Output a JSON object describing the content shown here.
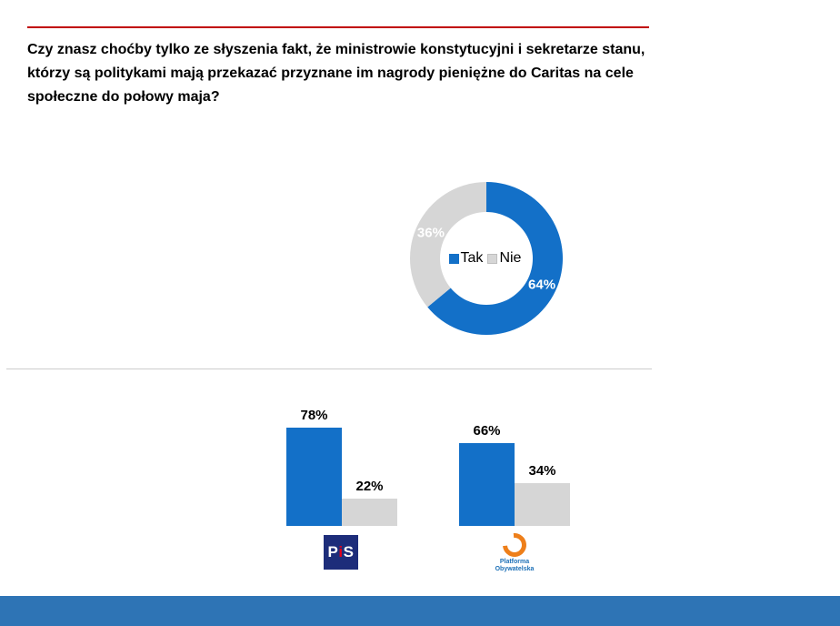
{
  "title": "Czy znasz choćby tylko ze słyszenia fakt, że ministrowie konstytucyjni i sekretarze stanu, którzy są politykami mają przekazać przyznane im nagrody pieniężne do Caritas na cele społeczne do połowy maja?",
  "colors": {
    "rule_red": "#C00000",
    "chart_blue": "#1370C8",
    "chart_gray": "#D6D6D6",
    "footer_blue": "#2E74B5"
  },
  "chart_data": [
    {
      "type": "pie",
      "variant": "donut",
      "labels": [
        "Tak",
        "Nie"
      ],
      "values": [
        64,
        36
      ],
      "data_labels": [
        "64%",
        "36%"
      ],
      "colors": [
        "#1370C8",
        "#D6D6D6"
      ],
      "legend": [
        "Tak",
        "Nie"
      ],
      "legend_position": "center",
      "start_angle_deg": 0,
      "direction": "clockwise"
    },
    {
      "type": "bar",
      "group": "PiS",
      "categories": [
        "Tak",
        "Nie"
      ],
      "values": [
        78,
        22
      ],
      "data_labels": [
        "78%",
        "22%"
      ],
      "colors": [
        "#1370C8",
        "#D6D6D6"
      ],
      "ylim": [
        0,
        100
      ],
      "grid": false
    },
    {
      "type": "bar",
      "group": "Platforma Obywatelska",
      "categories": [
        "Tak",
        "Nie"
      ],
      "values": [
        66,
        34
      ],
      "data_labels": [
        "66%",
        "34%"
      ],
      "colors": [
        "#1370C8",
        "#D6D6D6"
      ],
      "ylim": [
        0,
        100
      ],
      "grid": false
    }
  ],
  "legend": {
    "tak": "Tak",
    "nie": "Nie"
  },
  "logos": {
    "pis_p": "P",
    "pis_i": "i",
    "pis_s": "S",
    "po_line1": "Platforma",
    "po_line2": "Obywatelska"
  }
}
